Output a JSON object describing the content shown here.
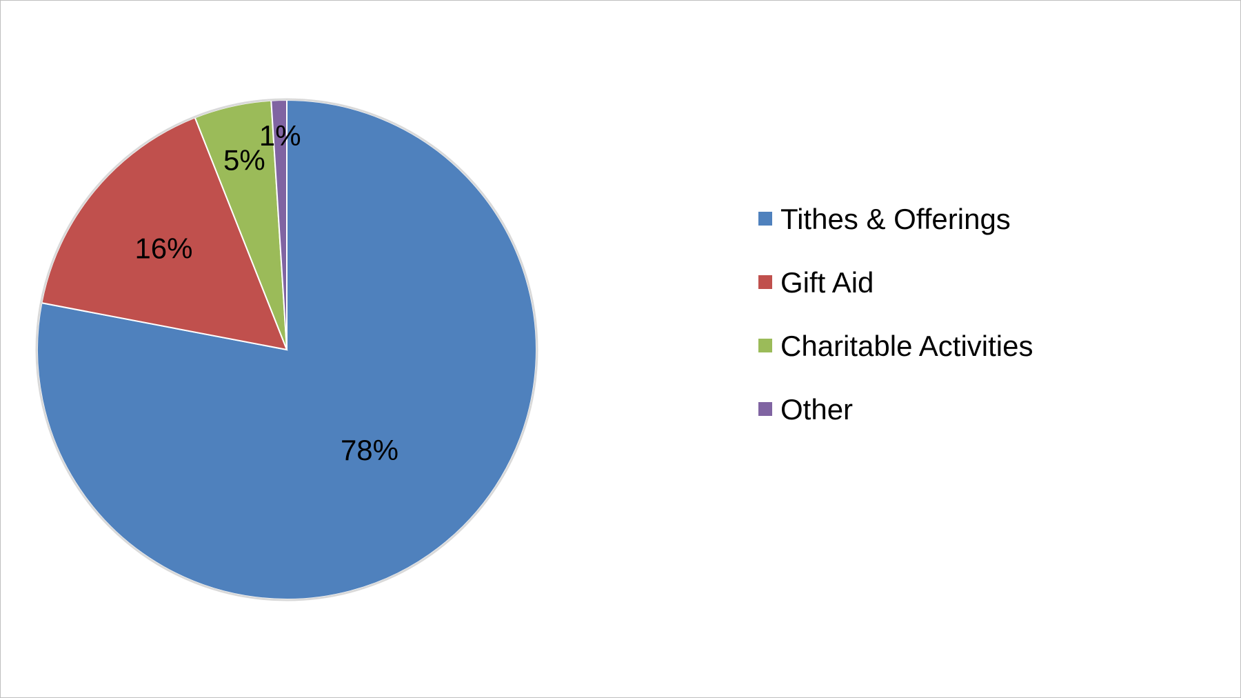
{
  "chart_data": {
    "type": "pie",
    "categories": [
      "Tithes & Offerings",
      "Gift Aid",
      "Charitable Activities",
      "Other"
    ],
    "values": [
      78,
      16,
      5,
      1
    ],
    "labels": [
      "78%",
      "16%",
      "5%",
      "1%"
    ],
    "colors": [
      "#4f81bd",
      "#c0504d",
      "#9bbb59",
      "#8064a2"
    ],
    "start_angle": "12 o'clock",
    "direction": "clockwise",
    "legend_position": "right",
    "title": ""
  }
}
